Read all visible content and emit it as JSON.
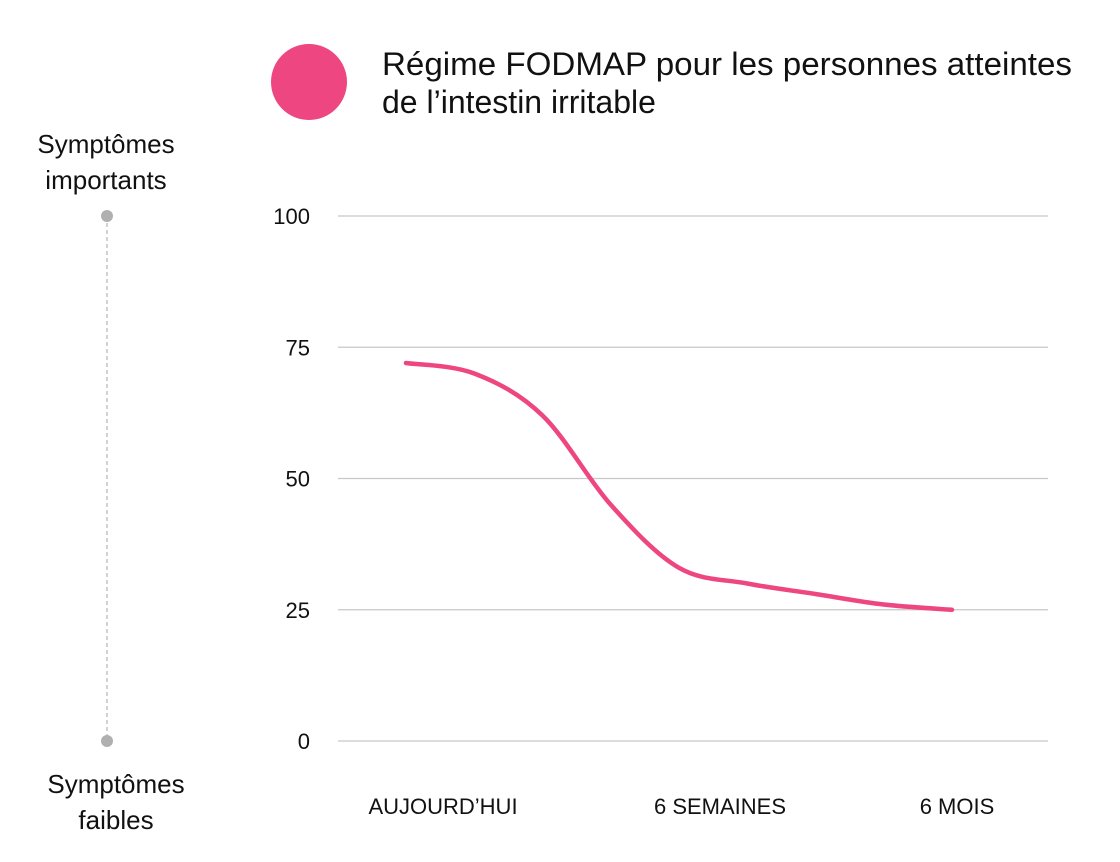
{
  "chart_data": {
    "type": "line",
    "title": "",
    "legend": {
      "label_line1": "Régime FODMAP pour les personnes atteintes",
      "label_line2": "de l’intestin irritable",
      "placement": "top"
    },
    "categories": [
      "AUJOURD’HUI",
      "6 SEMAINES",
      "6 MOIS"
    ],
    "y_ticks": [
      "100",
      "75",
      "50",
      "25",
      "0"
    ],
    "ylim": [
      0,
      100
    ],
    "grid": true,
    "series": [
      {
        "name": "Régime FODMAP pour les personnes atteintes de l’intestin irritable",
        "color": "#EE4681",
        "x": [
          0.0,
          0.25,
          0.5,
          0.75,
          1.0,
          1.25,
          1.5,
          1.75,
          2.0
        ],
        "values": [
          72,
          70,
          62,
          45,
          33,
          30,
          28,
          26,
          25
        ]
      }
    ],
    "side_axis": {
      "top_label_line1": "Symptômes",
      "top_label_line2": "importants",
      "bottom_label_line1": "Symptômes",
      "bottom_label_line2": "faibles",
      "color": "#b0b0b0"
    },
    "grid_color": "#c8c8c8"
  }
}
